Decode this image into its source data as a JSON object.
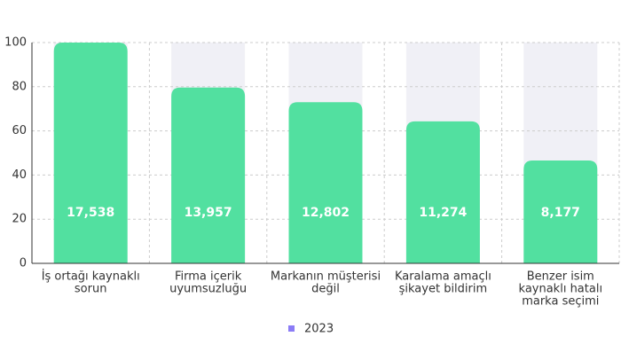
{
  "chart_data": {
    "type": "bar",
    "categories": [
      [
        "İş ortağı kaynaklı",
        "sorun"
      ],
      [
        "Firma içerik",
        "uyumsuzluğu"
      ],
      [
        "Markanın müşterisi",
        "değil"
      ],
      [
        "Karalama amaçlı",
        "şikayet bildirim"
      ],
      [
        "Benzer isim",
        "kaynaklı hatalı",
        "marka seçimi"
      ]
    ],
    "series": [
      {
        "name": "2023",
        "color": "#52e0a0",
        "legend_color": "#8b7cf6",
        "values": [
          100,
          79.6,
          73,
          64.3,
          46.6
        ],
        "value_labels": [
          "17,538",
          "13,957",
          "12,802",
          "11,274",
          "8,177"
        ]
      }
    ],
    "ylim": [
      0,
      100
    ],
    "yticks": [
      0,
      20,
      40,
      60,
      80,
      100
    ],
    "grid": true
  }
}
